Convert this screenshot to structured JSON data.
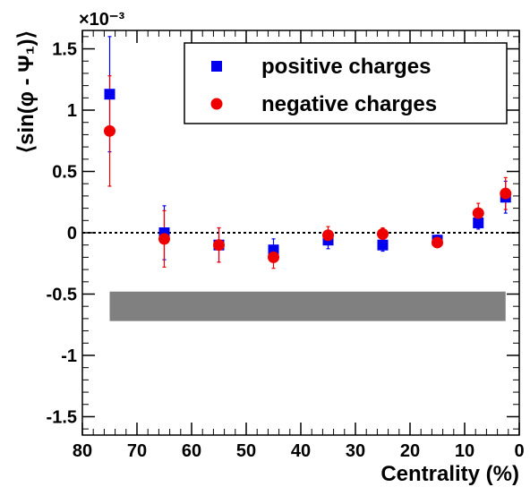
{
  "chart_data": {
    "type": "scatter",
    "xlabel": "Centrality (%)",
    "ylabel": "⟨sin(φ - Ψ₁)⟩",
    "y_multiplier_label": "×10⁻³",
    "xlim": [
      80,
      0
    ],
    "ylim": [
      -1.65,
      1.65
    ],
    "x_reversed": true,
    "x_ticks": [
      80,
      70,
      60,
      50,
      40,
      30,
      20,
      10,
      0
    ],
    "y_ticks": [
      -1.5,
      -1,
      -0.5,
      0,
      0.5,
      1,
      1.5
    ],
    "y_tick_labels": [
      "-1.5",
      "-1",
      "-0.5",
      "0",
      "0.5",
      "1",
      "1.5"
    ],
    "zero_line": true,
    "legend_position": "top-right",
    "series": [
      {
        "name": "positive charges",
        "marker": "square",
        "color": "#0000ee",
        "points": [
          {
            "x": 75,
            "y": 1.13,
            "err": 0.47
          },
          {
            "x": 65,
            "y": 0.0,
            "err": 0.22
          },
          {
            "x": 55,
            "y": -0.1,
            "err": 0.14
          },
          {
            "x": 45,
            "y": -0.14,
            "err": 0.09
          },
          {
            "x": 35,
            "y": -0.06,
            "err": 0.07
          },
          {
            "x": 25,
            "y": -0.1,
            "err": 0.05
          },
          {
            "x": 15,
            "y": -0.06,
            "err": 0.04
          },
          {
            "x": 7.5,
            "y": 0.08,
            "err": 0.05
          },
          {
            "x": 2.5,
            "y": 0.29,
            "err": 0.13
          }
        ]
      },
      {
        "name": "negative charges",
        "marker": "circle",
        "color": "#ee0000",
        "points": [
          {
            "x": 75,
            "y": 0.83,
            "err": 0.45
          },
          {
            "x": 65,
            "y": -0.05,
            "err": 0.23
          },
          {
            "x": 55,
            "y": -0.1,
            "err": 0.14
          },
          {
            "x": 45,
            "y": -0.2,
            "err": 0.09
          },
          {
            "x": 35,
            "y": -0.02,
            "err": 0.07
          },
          {
            "x": 25,
            "y": -0.01,
            "err": 0.05
          },
          {
            "x": 15,
            "y": -0.08,
            "err": 0.04
          },
          {
            "x": 7.5,
            "y": 0.16,
            "err": 0.08
          },
          {
            "x": 2.5,
            "y": 0.32,
            "err": 0.13
          }
        ]
      }
    ],
    "systematic_band": {
      "x_from": 75,
      "x_to": 2.5,
      "y_low": -0.72,
      "y_high": -0.48,
      "color": "#808080"
    }
  }
}
